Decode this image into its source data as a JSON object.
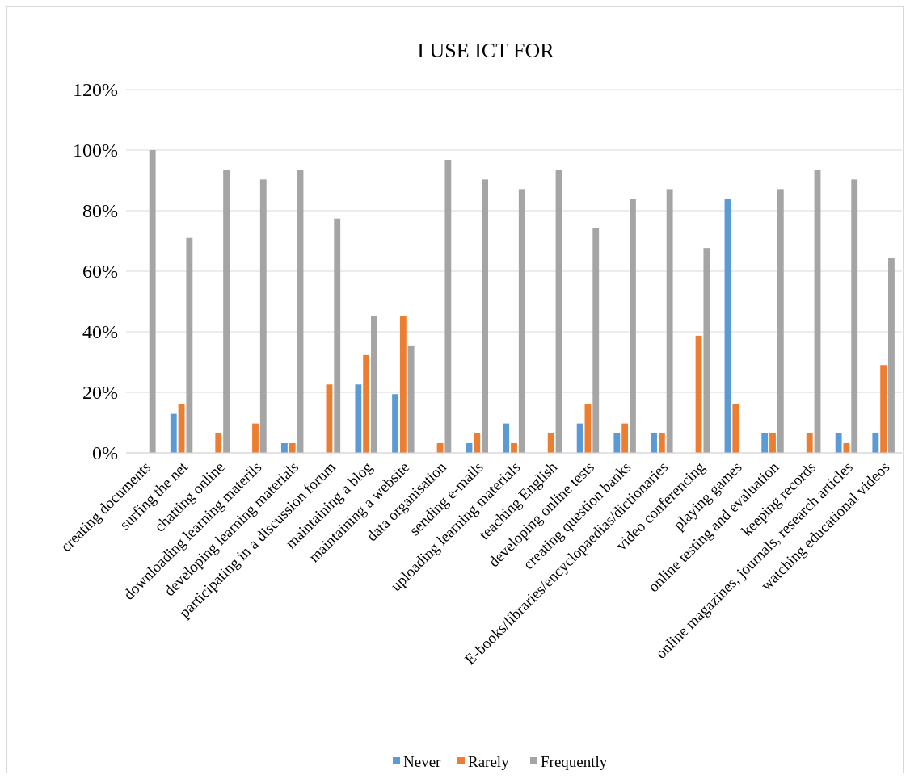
{
  "chart_data": {
    "type": "bar",
    "title": "I USE ICT FOR",
    "categories": [
      "creating documents",
      "surfing the net",
      "chatting online",
      "downloading learning materils",
      "developing learning materials",
      "participating in a discussion forum",
      "maintaining a blog",
      "maintaining a website",
      "data organisation",
      "sending e-mails",
      "uploading learning materials",
      "teaching English",
      "developing online tests",
      "creating question banks",
      "E-books/libraries/encyclopaedias/dictionaries",
      "video conferencing",
      "playing games",
      "online testing and evaluation",
      "keeping records",
      "online magazines, journals, research articles",
      "watching educational videos"
    ],
    "series": [
      {
        "name": "Never",
        "color": "#5b9bd5",
        "values": [
          0,
          12.9,
          0,
          0,
          3.2,
          0,
          22.6,
          19.4,
          0,
          3.2,
          9.7,
          0,
          9.7,
          6.5,
          6.5,
          0,
          83.9,
          6.5,
          0,
          6.5,
          6.5
        ]
      },
      {
        "name": "Rarely",
        "color": "#ed7d31",
        "values": [
          0,
          16.1,
          6.5,
          9.7,
          3.2,
          22.6,
          32.3,
          45.2,
          3.2,
          6.5,
          3.2,
          6.5,
          16.1,
          9.7,
          6.5,
          38.7,
          16.1,
          6.5,
          6.5,
          3.2,
          29
        ]
      },
      {
        "name": "Frequently",
        "color": "#a5a5a5",
        "values": [
          100,
          71,
          93.5,
          90.3,
          93.5,
          77.4,
          45.2,
          35.5,
          96.8,
          90.3,
          87.1,
          93.5,
          74.2,
          83.9,
          87.1,
          67.7,
          0,
          87.1,
          93.5,
          90.3,
          64.5
        ]
      }
    ],
    "ylim": [
      0,
      120
    ],
    "yticks": [
      {
        "value": 0,
        "label": "0%"
      },
      {
        "value": 20,
        "label": "20%"
      },
      {
        "value": 40,
        "label": "40%"
      },
      {
        "value": 60,
        "label": "60%"
      },
      {
        "value": 80,
        "label": "80%"
      },
      {
        "value": 100,
        "label": "100%"
      },
      {
        "value": 120,
        "label": "120%"
      }
    ],
    "grid": "y",
    "legend": "bottom"
  }
}
